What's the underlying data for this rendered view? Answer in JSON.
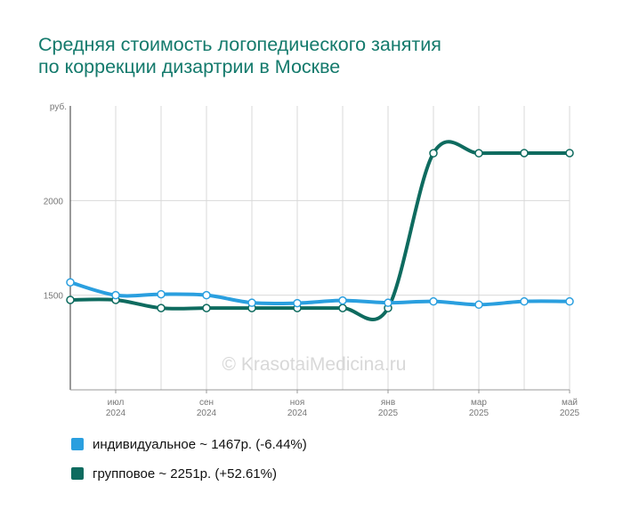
{
  "chart_data": {
    "type": "line",
    "title": "Средняя стоимость логопедического занятия по коррекции дизартрии в Москве",
    "title_lines": [
      "Средняя стоимость логопедического занятия",
      "по коррекции дизартрии в Москве"
    ],
    "y_unit": "руб.",
    "ylim": [
      1000,
      2500
    ],
    "y_ticks": [
      1500,
      2000
    ],
    "y_tick_labels": [
      "1500",
      "2000"
    ],
    "x": [
      "2024-06",
      "2024-07",
      "2024-08",
      "2024-09",
      "2024-10",
      "2024-11",
      "2024-12",
      "2025-01",
      "2025-02",
      "2025-03",
      "2025-04",
      "2025-05"
    ],
    "x_ticks": [
      {
        "month": "июл",
        "year": "2024"
      },
      {
        "month": "сен",
        "year": "2024"
      },
      {
        "month": "ноя",
        "year": "2024"
      },
      {
        "month": "янв",
        "year": "2025"
      },
      {
        "month": "мар",
        "year": "2025"
      },
      {
        "month": "май",
        "year": "2025"
      }
    ],
    "grid": true,
    "series": [
      {
        "name": "индивидуальное",
        "color": "#2a9fdf",
        "values": [
          1568,
          1500,
          1505,
          1500,
          1460,
          1458,
          1472,
          1460,
          1467,
          1450,
          1467,
          1467
        ],
        "legend": "индивидуальное ~ 1467р. (-6.44%)"
      },
      {
        "name": "групповое",
        "color": "#0e6b5f",
        "values": [
          1475,
          1475,
          1432,
          1432,
          1432,
          1432,
          1432,
          1432,
          2250,
          2250,
          2251,
          2251
        ],
        "legend": "групповое ~ 2251р. (+52.61%)"
      }
    ],
    "watermark": "© KrasotaiMedicina.ru",
    "legend_position": "bottom-left"
  }
}
